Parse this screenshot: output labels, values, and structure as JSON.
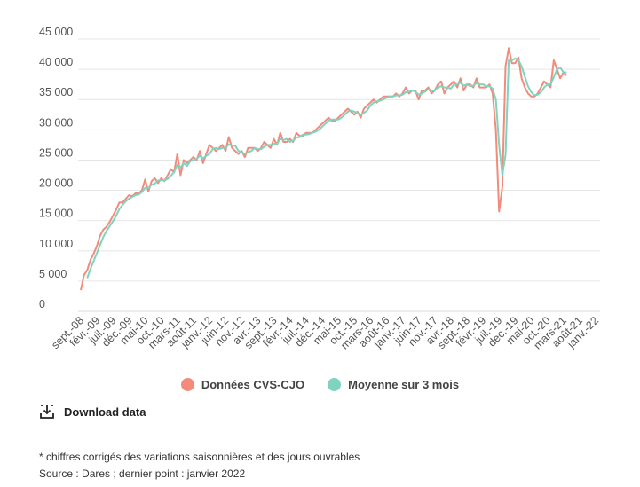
{
  "colors": {
    "series_a": "#f28b7b",
    "series_b": "#7fd3bf",
    "grid": "#e6e6e6"
  },
  "legend": [
    {
      "label": "Données CVS-CJO",
      "color": "#f28b7b"
    },
    {
      "label": "Moyenne sur 3 mois",
      "color": "#7fd3bf"
    }
  ],
  "download": {
    "label": "Download data",
    "icon": "download-icon"
  },
  "footnotes": {
    "note": "* chiffres corrigés des variations saisonnières et des jours ouvrables",
    "source": "Source : Dares ; dernier point : janvier 2022"
  },
  "chart_data": {
    "type": "line",
    "ylim": [
      0,
      45000
    ],
    "yticks": [
      "0",
      "5 000",
      "10 000",
      "15 000",
      "20 000",
      "25 000",
      "30 000",
      "35 000",
      "40 000",
      "45 000"
    ],
    "xticks": [
      "sept.-08",
      "févr.-09",
      "juil.-09",
      "déc.-09",
      "mai-10",
      "oct.-10",
      "mars-11",
      "août-11",
      "janv.-12",
      "juin-12",
      "nov.-12",
      "avr.-13",
      "sept.-13",
      "févr.-14",
      "juil.-14",
      "déc.-14",
      "mai-15",
      "oct.-15",
      "mars-16",
      "août-16",
      "janv.-17",
      "juin-17",
      "nov.-17",
      "avr.-18",
      "sept.-18",
      "févr.-19",
      "juil.-19",
      "déc.-19",
      "mai-20",
      "oct.-20",
      "mars-21",
      "août-21",
      "janv.-22"
    ],
    "x_start": "2008-09",
    "x_end": "2022-01",
    "grid": true,
    "legend_position": "bottom",
    "series": [
      {
        "name": "Données CVS-CJO",
        "values": [
          3500,
          6000,
          6800,
          8500,
          9500,
          10800,
          12500,
          13500,
          14000,
          14800,
          15800,
          16800,
          18000,
          18000,
          18600,
          19200,
          19000,
          19500,
          19500,
          20000,
          21800,
          19800,
          21500,
          22000,
          21200,
          22000,
          21500,
          22500,
          23500,
          23000,
          26000,
          22500,
          25000,
          24500,
          25000,
          25500,
          25000,
          26500,
          24500,
          26000,
          27500,
          27000,
          26500,
          27000,
          27500,
          26500,
          28800,
          27000,
          26500,
          26000,
          26500,
          25500,
          27000,
          27000,
          27000,
          26500,
          27000,
          28000,
          27500,
          27000,
          28500,
          27500,
          29500,
          28000,
          28000,
          28500,
          28000,
          29500,
          29000,
          29000,
          29500,
          29500,
          29500,
          30000,
          30500,
          31000,
          31500,
          32000,
          31500,
          31500,
          32000,
          32500,
          33000,
          33500,
          33000,
          32500,
          33000,
          32000,
          33500,
          34000,
          34500,
          35000,
          34500,
          35000,
          35500,
          35500,
          35500,
          35500,
          36000,
          35500,
          36000,
          37000,
          36000,
          36500,
          36500,
          35000,
          36500,
          36500,
          37000,
          36000,
          36500,
          37500,
          38000,
          36000,
          37000,
          37500,
          38000,
          37000,
          38500,
          36500,
          37500,
          37500,
          37000,
          38500,
          37000,
          37000,
          37000,
          37500,
          36000,
          30000,
          16500,
          20500,
          40500,
          43500,
          41000,
          41000,
          42000,
          38500,
          37000,
          36000,
          35500,
          35500,
          36000,
          37000,
          38000,
          37500,
          37000,
          41500,
          40000,
          38500,
          39500,
          39000
        ],
        "color": "#f28b7b"
      },
      {
        "name": "Moyenne sur 3 mois",
        "values": [
          null,
          null,
          5500,
          7000,
          8300,
          9600,
          11000,
          12300,
          13300,
          14100,
          14900,
          15800,
          16900,
          17600,
          18200,
          18600,
          18900,
          19200,
          19300,
          19700,
          20400,
          20400,
          20900,
          21100,
          21600,
          21700,
          21600,
          21900,
          22400,
          23000,
          24200,
          23800,
          24500,
          24000,
          24800,
          25000,
          25200,
          25700,
          25300,
          25700,
          26000,
          26800,
          27000,
          26800,
          27000,
          27000,
          27600,
          27400,
          27400,
          26500,
          26300,
          26000,
          26300,
          26500,
          27000,
          26800,
          26800,
          27200,
          27500,
          27500,
          27700,
          27700,
          28500,
          28300,
          28500,
          28000,
          28200,
          28700,
          28800,
          29200,
          29200,
          29300,
          29500,
          29700,
          30000,
          30500,
          31000,
          31500,
          31700,
          31700,
          31700,
          32000,
          32500,
          33000,
          33200,
          33000,
          32800,
          32500,
          32800,
          33200,
          34000,
          34500,
          34700,
          34800,
          35000,
          35300,
          35500,
          35500,
          35700,
          35700,
          35800,
          36200,
          36300,
          36500,
          36300,
          35800,
          36000,
          36300,
          36700,
          36500,
          36500,
          37000,
          37200,
          37000,
          37000,
          36800,
          37500,
          37500,
          37800,
          37300,
          37500,
          37200,
          37300,
          37700,
          37500,
          37500,
          37200,
          37200,
          36800,
          35000,
          27500,
          22500,
          25800,
          41500,
          41500,
          41800,
          41500,
          40500,
          38800,
          37200,
          36200,
          35700,
          35800,
          36200,
          37000,
          37500,
          37500,
          38700,
          40000,
          40300,
          39500,
          39500
        ],
        "color": "#7fd3bf"
      }
    ]
  }
}
